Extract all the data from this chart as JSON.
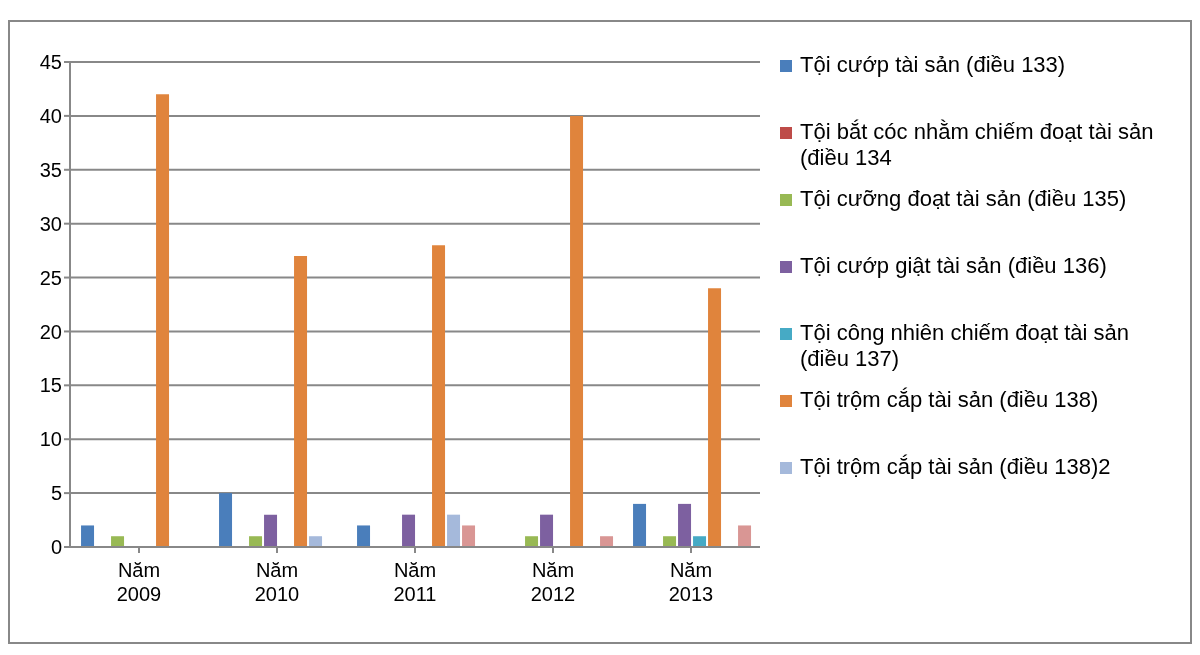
{
  "chart_data": {
    "type": "bar",
    "categories": [
      "Năm 2009",
      "Năm 2010",
      "Năm 2011",
      "Năm 2012",
      "Năm 2013"
    ],
    "series": [
      {
        "name": "Tội cướp tài sản (điều 133)",
        "color": "#4a7ebb",
        "values": [
          2,
          5,
          2,
          0,
          4
        ]
      },
      {
        "name": "Tội bắt cóc nhằm chiếm đoạt tài sản (điều 134",
        "color": "#be4b48",
        "values": [
          0,
          0,
          0,
          0,
          0
        ]
      },
      {
        "name": "Tội cưỡng đoạt tài sản (điều 135)",
        "color": "#98b954",
        "values": [
          1,
          1,
          0,
          1,
          1
        ]
      },
      {
        "name": "Tội cướp giật tài sản (điều 136)",
        "color": "#7d60a0",
        "values": [
          0,
          3,
          3,
          3,
          4
        ]
      },
      {
        "name": "Tội công nhiên chiếm đoạt tài sản (điều 137)",
        "color": "#46aac5",
        "values": [
          0,
          0,
          0,
          0,
          1
        ]
      },
      {
        "name": "Tội trộm cắp tài sản (điều 138)",
        "color": "#e0843c",
        "values": [
          42,
          27,
          28,
          40,
          24
        ]
      },
      {
        "name": "Tội trộm cắp tài sản (điều 138)2",
        "color": "#a5b9db",
        "values": [
          0,
          1,
          3,
          0,
          0
        ]
      },
      {
        "color": "#d99694",
        "values": [
          0,
          0,
          2,
          1,
          2
        ]
      }
    ],
    "ylim": [
      0,
      45
    ],
    "yticks": [
      0,
      5,
      10,
      15,
      20,
      25,
      30,
      35,
      40,
      45
    ],
    "grid": "y",
    "legend": "right"
  }
}
